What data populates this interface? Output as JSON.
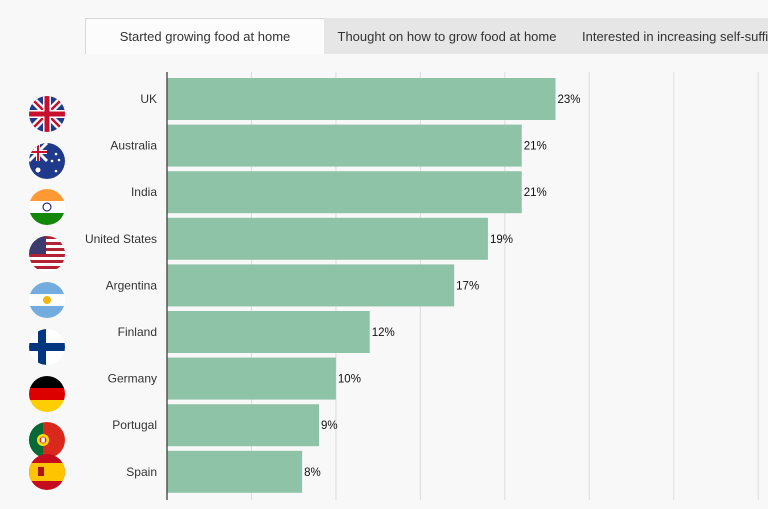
{
  "tabs": [
    {
      "label": "Started growing food at home",
      "active": true
    },
    {
      "label": "Thought on how to grow food at home",
      "active": false
    },
    {
      "label": "Interested in increasing self-suffic",
      "active": false
    }
  ],
  "colors": {
    "bar": "#8fc3a8",
    "grid": "#dddddd",
    "axis": "#555555"
  },
  "chart_data": {
    "type": "bar",
    "orientation": "horizontal",
    "categories": [
      "UK",
      "Australia",
      "India",
      "United States",
      "Argentina",
      "Finland",
      "Germany",
      "Portugal",
      "Spain"
    ],
    "values": [
      23,
      21,
      21,
      19,
      17,
      12,
      10,
      9,
      8
    ],
    "value_labels": [
      "23%",
      "21%",
      "21%",
      "19%",
      "17%",
      "12%",
      "10%",
      "9%",
      "8%"
    ],
    "flags": [
      "uk-flag-icon",
      "australia-flag-icon",
      "india-flag-icon",
      "usa-flag-icon",
      "argentina-flag-icon",
      "finland-flag-icon",
      "germany-flag-icon",
      "portugal-flag-icon",
      "spain-flag-icon"
    ],
    "xlim": [
      0,
      37
    ],
    "grid": true,
    "grid_step": 5
  }
}
